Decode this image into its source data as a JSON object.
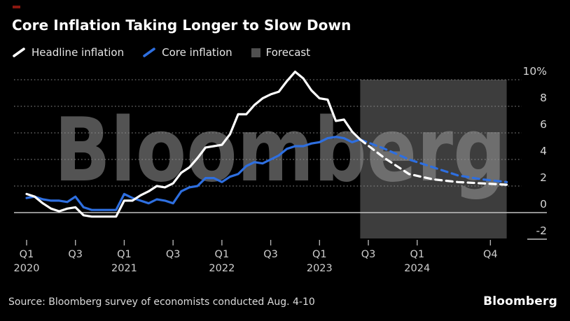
{
  "accent_color": "#8a1810",
  "title": "Core Inflation Taking Longer to Slow Down",
  "legend": [
    {
      "label": "Headline inflation",
      "symbol": "line",
      "color": "#ffffff"
    },
    {
      "label": "Core inflation",
      "symbol": "line",
      "color": "#2e6fe0"
    },
    {
      "label": "Forecast",
      "symbol": "square",
      "color": "#4f4f4f"
    }
  ],
  "watermark": "Bloomberg",
  "footer": {
    "source": "Source: Bloomberg survey of economists conducted Aug. 4-10",
    "logo": "Bloomberg"
  },
  "chart_data": {
    "type": "line",
    "unit": "%",
    "freq": "monthly",
    "start_month": "2020-01",
    "ylim": [
      -2,
      10.6
    ],
    "yticks": [
      10,
      8,
      6,
      4,
      2,
      0,
      -2
    ],
    "ytick_labels": [
      "10%",
      "8",
      "6",
      "4",
      "2",
      "0",
      "-2"
    ],
    "grid": "dotted-horizontal, solid zero line",
    "legend_position": "top-left",
    "xticks": [
      {
        "quarter": "Q1",
        "year": "2020",
        "month_index": 0
      },
      {
        "quarter": "Q3",
        "year": "",
        "month_index": 6
      },
      {
        "quarter": "Q1",
        "year": "2021",
        "month_index": 12
      },
      {
        "quarter": "Q3",
        "year": "",
        "month_index": 18
      },
      {
        "quarter": "Q1",
        "year": "2022",
        "month_index": 24
      },
      {
        "quarter": "Q3",
        "year": "",
        "month_index": 30
      },
      {
        "quarter": "Q1",
        "year": "2023",
        "month_index": 36
      },
      {
        "quarter": "Q3",
        "year": "",
        "month_index": 42
      },
      {
        "quarter": "Q1",
        "year": "2024",
        "month_index": 48
      },
      {
        "quarter": "Q4",
        "year": "",
        "month_index": 57
      }
    ],
    "forecast_region": {
      "start_month_index": 41,
      "end_month_index": 59,
      "fill": "#3d3d3d"
    },
    "series": [
      {
        "name": "Core inflation",
        "color": "#2e6fe0",
        "style": "solid",
        "start_month_index": 0,
        "values": [
          1.1,
          1.2,
          1.0,
          0.9,
          0.9,
          0.8,
          1.2,
          0.4,
          0.2,
          0.2,
          0.2,
          0.2,
          1.4,
          1.1,
          0.9,
          0.7,
          1.0,
          0.9,
          0.7,
          1.6,
          1.9,
          2.0,
          2.6,
          2.6,
          2.3,
          2.7,
          2.9,
          3.5,
          3.8,
          3.7,
          4.0,
          4.3,
          4.8,
          5.0,
          5.0,
          5.2,
          5.3,
          5.6,
          5.7,
          5.6,
          5.3,
          5.5
        ]
      },
      {
        "name": "Core inflation forecast",
        "color": "#2e6fe0",
        "style": "dashed",
        "month_indices": [
          41,
          44,
          47,
          50,
          53,
          56,
          59
        ],
        "values": [
          5.5,
          4.8,
          4.0,
          3.4,
          2.8,
          2.5,
          2.3
        ]
      },
      {
        "name": "Headline inflation",
        "color": "#ffffff",
        "style": "solid",
        "start_month_index": 0,
        "values": [
          1.4,
          1.2,
          0.7,
          0.3,
          0.1,
          0.3,
          0.4,
          -0.2,
          -0.3,
          -0.3,
          -0.3,
          -0.3,
          0.9,
          0.9,
          1.3,
          1.6,
          2.0,
          1.9,
          2.2,
          3.0,
          3.4,
          4.1,
          4.9,
          5.0,
          5.1,
          5.9,
          7.4,
          7.4,
          8.1,
          8.6,
          8.9,
          9.1,
          9.9,
          10.6,
          10.1,
          9.2,
          8.6,
          8.5,
          6.9,
          7.0,
          6.1,
          5.5
        ]
      },
      {
        "name": "Headline inflation forecast",
        "color": "#ffffff",
        "style": "dashed",
        "month_indices": [
          41,
          44,
          47,
          50,
          53,
          56,
          59
        ],
        "values": [
          5.5,
          4.1,
          2.9,
          2.5,
          2.3,
          2.2,
          2.1
        ]
      }
    ],
    "style": {
      "background": "#000000",
      "gridline_color": "#8f8f8f",
      "zero_line_color": "#c2c2c2",
      "axis_text_color": "#d6d6d6",
      "watermark_color": "rgba(152,152,152,0.55)"
    }
  }
}
